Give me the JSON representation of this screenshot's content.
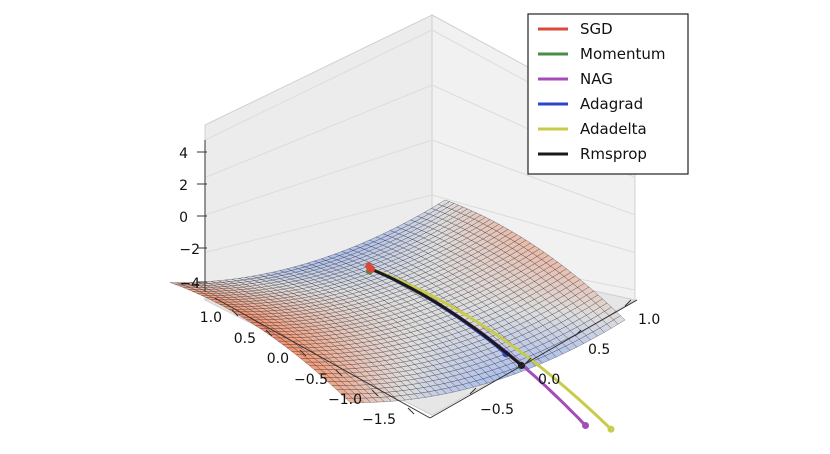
{
  "chart_data": {
    "type": "surface3d",
    "title": "",
    "surface": {
      "function": "z = x^2 - y^2 (saddle)",
      "colormap": "coolwarm",
      "x_range": [
        -1.5,
        1.0
      ],
      "y_range": [
        -1.0,
        1.0
      ],
      "z_range": [
        -4,
        4
      ]
    },
    "axes": {
      "z_ticks": [
        "4",
        "2",
        "0",
        "−2",
        "−4"
      ],
      "left_ticks": [
        "1.0",
        "0.5",
        "0.0",
        "−0.5",
        "−1.0",
        "−1.5"
      ],
      "right_ticks": [
        "1.0",
        "0.5",
        "0.0",
        "−0.5"
      ]
    },
    "legend": {
      "position": "top-right",
      "entries": [
        {
          "name": "SGD",
          "color": "#d9493a"
        },
        {
          "name": "Momentum",
          "color": "#4a8c4a"
        },
        {
          "name": "NAG",
          "color": "#a44cb8"
        },
        {
          "name": "Adagrad",
          "color": "#2c45c8"
        },
        {
          "name": "Adadelta",
          "color": "#c8cc4a"
        },
        {
          "name": "Rmsprop",
          "color": "#1a1a1a"
        }
      ]
    },
    "series": [
      {
        "name": "SGD",
        "color": "#d9493a"
      },
      {
        "name": "Momentum",
        "color": "#4a8c4a"
      },
      {
        "name": "NAG",
        "color": "#a44cb8"
      },
      {
        "name": "Adagrad",
        "color": "#2c45c8"
      },
      {
        "name": "Adadelta",
        "color": "#c8cc4a"
      },
      {
        "name": "Rmsprop",
        "color": "#1a1a1a"
      }
    ]
  }
}
